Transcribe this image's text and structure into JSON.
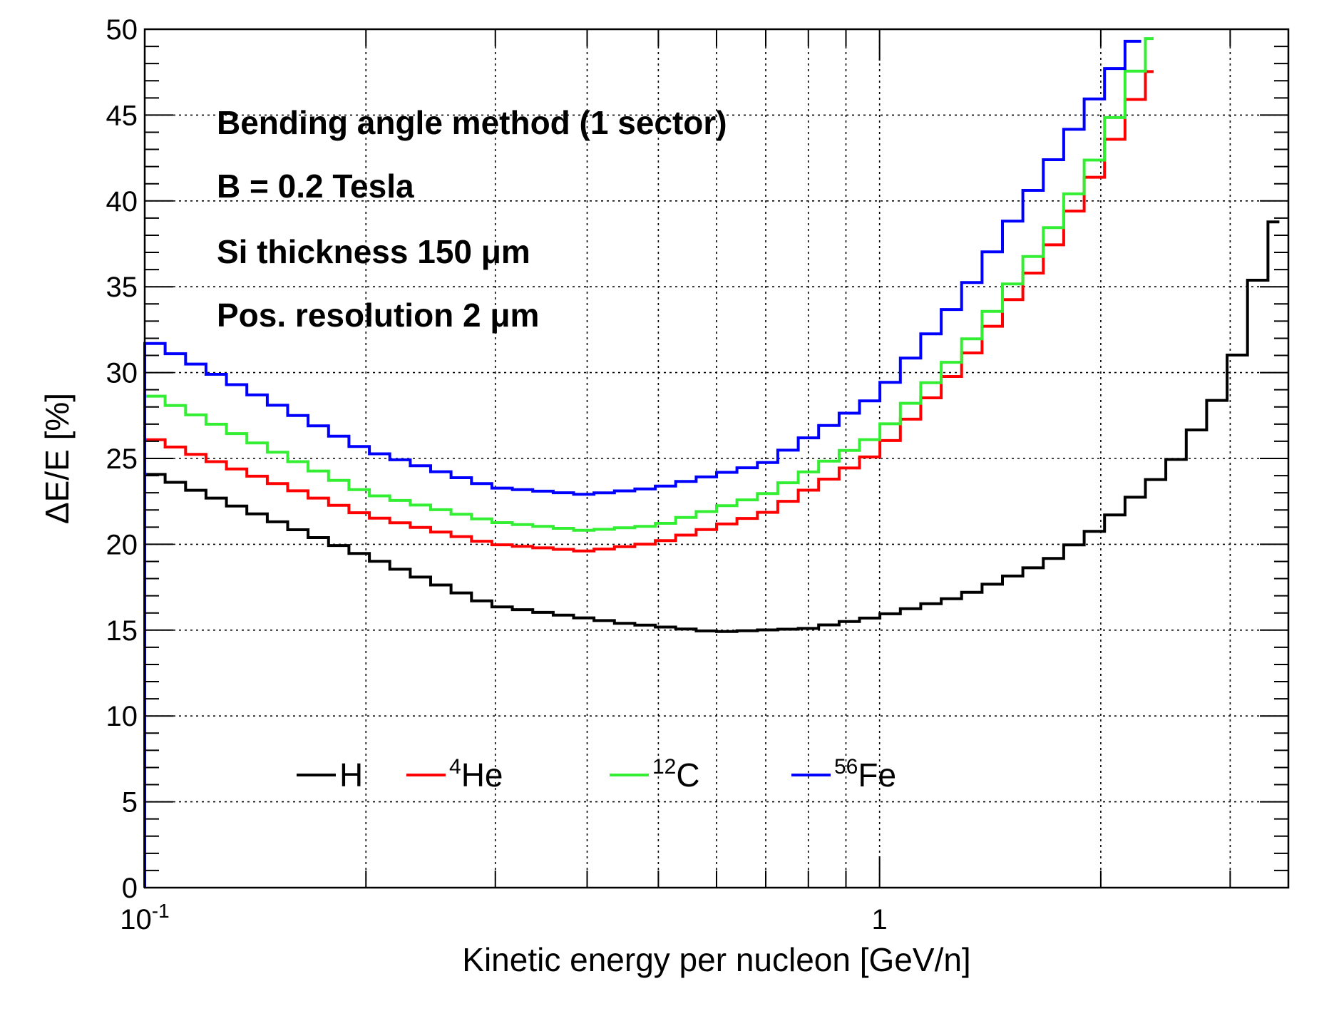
{
  "chart_data": {
    "type": "line",
    "title": "",
    "xlabel": "Kinetic energy per nucleon [GeV/n]",
    "ylabel": "ΔE/E [%]",
    "x_scale": "log",
    "xlim": [
      0.1,
      3.6
    ],
    "ylim": [
      0,
      50
    ],
    "grid": true,
    "x_tick_labels": [
      {
        "value": 0.1,
        "base": "10",
        "exp": "-1"
      },
      {
        "value": 1,
        "base": "1",
        "exp": ""
      }
    ],
    "y_ticks": [
      0,
      5,
      10,
      15,
      20,
      25,
      30,
      35,
      40,
      45,
      50
    ],
    "annotations": [
      "Bending angle method (1 sector)",
      "B = 0.2 Tesla",
      "Si thickness 150 μm",
      "Pos. resolution 2 μm"
    ],
    "legend_placement": "bottom",
    "series": [
      {
        "name": "H",
        "sup": "",
        "color": "#000000",
        "points": [
          [
            0.1,
            24.3
          ],
          [
            0.3,
            16.4
          ],
          [
            0.45,
            15.4
          ],
          [
            0.6,
            14.9
          ],
          [
            0.8,
            15.1
          ],
          [
            1.0,
            15.8
          ],
          [
            1.3,
            17.0
          ],
          [
            1.7,
            19.0
          ],
          [
            2.0,
            21.0
          ],
          [
            2.5,
            24.6
          ],
          [
            3.0,
            29.5
          ],
          [
            3.5,
            40.0
          ]
        ]
      },
      {
        "name": "He",
        "sup": "4",
        "color": "#ff0000",
        "points": [
          [
            0.1,
            26.3
          ],
          [
            0.2,
            21.7
          ],
          [
            0.3,
            20.0
          ],
          [
            0.4,
            19.6
          ],
          [
            0.5,
            20.1
          ],
          [
            0.7,
            21.8
          ],
          [
            1.0,
            25.4
          ],
          [
            1.3,
            30.5
          ],
          [
            1.7,
            37.0
          ],
          [
            2.0,
            42.0
          ],
          [
            2.36,
            48.0
          ]
        ]
      },
      {
        "name": "C",
        "sup": "12",
        "color": "#33ee33",
        "points": [
          [
            0.1,
            28.9
          ],
          [
            0.2,
            23.0
          ],
          [
            0.3,
            21.3
          ],
          [
            0.4,
            20.8
          ],
          [
            0.5,
            21.1
          ],
          [
            0.7,
            22.9
          ],
          [
            1.0,
            26.4
          ],
          [
            1.3,
            31.3
          ],
          [
            1.7,
            38.0
          ],
          [
            2.0,
            43.0
          ],
          [
            2.36,
            50.0
          ]
        ]
      },
      {
        "name": "Fe",
        "sup": "56",
        "color": "#0000ff",
        "points": [
          [
            0.1,
            32.0
          ],
          [
            0.2,
            25.5
          ],
          [
            0.3,
            23.3
          ],
          [
            0.4,
            22.9
          ],
          [
            0.5,
            23.3
          ],
          [
            0.7,
            24.7
          ],
          [
            1.0,
            28.7
          ],
          [
            1.3,
            34.5
          ],
          [
            1.7,
            42.0
          ],
          [
            2.0,
            46.5
          ],
          [
            2.27,
            50.0
          ]
        ]
      }
    ]
  }
}
